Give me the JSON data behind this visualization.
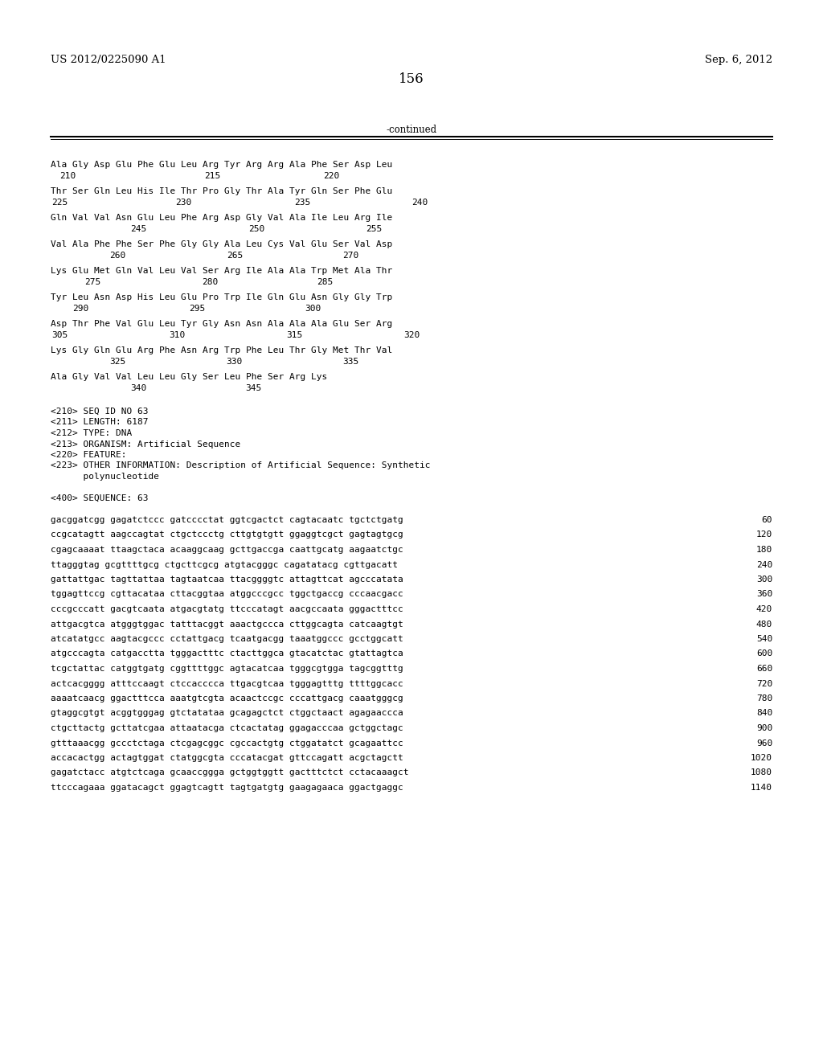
{
  "header_left": "US 2012/0225090 A1",
  "header_right": "Sep. 6, 2012",
  "page_number": "156",
  "continued_label": "-continued",
  "background_color": "#ffffff",
  "text_color": "#000000",
  "aa_groups": [
    {
      "seq": "Ala Gly Asp Glu Phe Glu Leu Arg Tyr Arg Arg Ala Phe Ser Asp Leu",
      "nums": [
        [
          "210",
          0.072
        ],
        [
          "215",
          0.248
        ],
        [
          "220",
          0.393
        ]
      ]
    },
    {
      "seq": "Thr Ser Gln Leu His Ile Thr Pro Gly Thr Ala Tyr Gln Ser Phe Glu",
      "nums": [
        [
          "225",
          0.063
        ],
        [
          "230",
          0.213
        ],
        [
          "235",
          0.358
        ],
        [
          "240",
          0.5
        ]
      ]
    },
    {
      "seq": "Gln Val Val Asn Glu Leu Phe Arg Asp Gly Val Ala Ile Leu Arg Ile",
      "nums": [
        [
          "245",
          0.158
        ],
        [
          "250",
          0.302
        ],
        [
          "255",
          0.444
        ]
      ]
    },
    {
      "seq": "Val Ala Phe Phe Ser Phe Gly Gly Ala Leu Cys Val Glu Ser Val Asp",
      "nums": [
        [
          "260",
          0.133
        ],
        [
          "265",
          0.276
        ],
        [
          "270",
          0.416
        ]
      ]
    },
    {
      "seq": "Lys Glu Met Gln Val Leu Val Ser Arg Ile Ala Ala Trp Met Ala Thr",
      "nums": [
        [
          "275",
          0.103
        ],
        [
          "280",
          0.245
        ],
        [
          "285",
          0.385
        ]
      ]
    },
    {
      "seq": "Tyr Leu Asn Asp His Leu Glu Pro Trp Ile Gln Glu Asn Gly Gly Trp",
      "nums": [
        [
          "290",
          0.088
        ],
        [
          "295",
          0.23
        ],
        [
          "300",
          0.37
        ]
      ]
    },
    {
      "seq": "Asp Thr Phe Val Glu Leu Tyr Gly Asn Asn Ala Ala Ala Glu Ser Arg",
      "nums": [
        [
          "305",
          0.063
        ],
        [
          "310",
          0.205
        ],
        [
          "315",
          0.348
        ],
        [
          "320",
          0.49
        ]
      ]
    },
    {
      "seq": "Lys Gly Gln Glu Arg Phe Asn Arg Trp Phe Leu Thr Gly Met Thr Val",
      "nums": [
        [
          "325",
          0.133
        ],
        [
          "330",
          0.275
        ],
        [
          "335",
          0.416
        ]
      ]
    },
    {
      "seq": "Ala Gly Val Val Leu Leu Gly Ser Leu Phe Ser Arg Lys",
      "nums": [
        [
          "340",
          0.158
        ],
        [
          "345",
          0.298
        ]
      ]
    }
  ],
  "seq_info": [
    "<210> SEQ ID NO 63",
    "<211> LENGTH: 6187",
    "<212> TYPE: DNA",
    "<213> ORGANISM: Artificial Sequence",
    "<220> FEATURE:",
    "<223> OTHER INFORMATION: Description of Artificial Sequence: Synthetic",
    "      polynucleotide"
  ],
  "seq400": "<400> SEQUENCE: 63",
  "dna_lines": [
    [
      "gacggatcgg gagatctccc gatcccctat ggtcgactct cagtacaatc tgctctgatg",
      "60"
    ],
    [
      "ccgcatagtt aagccagtat ctgctccctg cttgtgtgtt ggaggtcgct gagtagtgcg",
      "120"
    ],
    [
      "cgagcaaaat ttaagctaca acaaggcaag gcttgaccga caattgcatg aagaatctgc",
      "180"
    ],
    [
      "ttagggtag gcgttttgcg ctgcttcgcg atgtacgggc cagatatacg cgttgacatt",
      "240"
    ],
    [
      "gattattgac tagttattaa tagtaatcaa ttacggggtc attagttcat agcccatata",
      "300"
    ],
    [
      "tggagttccg cgttacataa cttacggtaa atggcccgcc tggctgaccg cccaacgacc",
      "360"
    ],
    [
      "cccgcccatt gacgtcaata atgacgtatg ttcccatagt aacgccaata gggactttcc",
      "420"
    ],
    [
      "attgacgtca atgggtggac tatttacggt aaactgccca cttggcagta catcaagtgt",
      "480"
    ],
    [
      "atcatatgcc aagtacgccc cctattgacg tcaatgacgg taaatggccc gcctggcatt",
      "540"
    ],
    [
      "atgcccagta catgacctta tgggactttc ctacttggca gtacatctac gtattagtca",
      "600"
    ],
    [
      "tcgctattac catggtgatg cggttttggc agtacatcaa tgggcgtgga tagcggtttg",
      "660"
    ],
    [
      "actcacgggg atttccaagt ctccacccca ttgacgtcaa tgggagtttg ttttggcacc",
      "720"
    ],
    [
      "aaaatcaacg ggactttcca aaatgtcgta acaactccgc cccattgacg caaatgggcg",
      "780"
    ],
    [
      "gtaggcgtgt acggtgggag gtctatataa gcagagctct ctggctaact agagaaccca",
      "840"
    ],
    [
      "ctgcttactg gcttatcgaa attaatacga ctcactatag ggagacccaa gctggctagc",
      "900"
    ],
    [
      "gtttaaacgg gccctctaga ctcgagcggc cgccactgtg ctggatatct gcagaattcc",
      "960"
    ],
    [
      "accacactgg actagtggat ctatggcgta cccatacgat gttccagatt acgctagctt",
      "1020"
    ],
    [
      "gagatctacc atgtctcaga gcaaccggga gctggtggtt gactttctct cctacaaagct",
      "1080"
    ],
    [
      "ttcccagaaa ggatacagct ggagtcagtt tagtgatgtg gaagagaaca ggactgaggc",
      "1140"
    ]
  ]
}
